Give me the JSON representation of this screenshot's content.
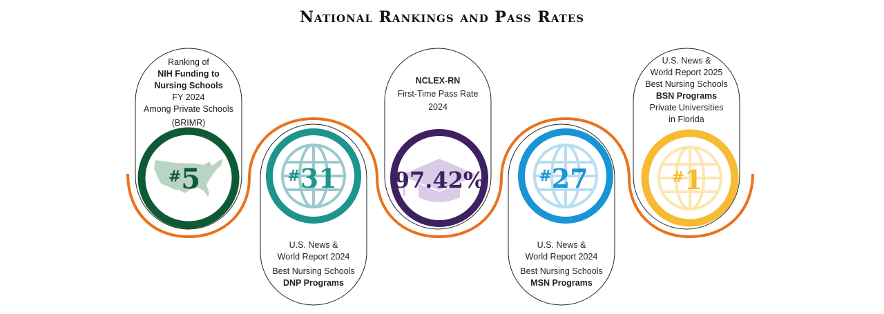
{
  "title": "National Rankings and Pass Rates",
  "colors": {
    "orange": "#E8731E",
    "green": "#0F5A36",
    "teal": "#1E948D",
    "purple": "#3E2160",
    "blue": "#1994D4",
    "gold": "#F6BB33"
  },
  "badges": [
    {
      "rank_prefix": "#",
      "rank_value": "5",
      "icon": "us-map-icon",
      "lines": [
        "Ranking of",
        "NIH Funding to",
        "Nursing Schools",
        "FY 2024",
        "Among Private Schools",
        "(BRIMR)"
      ]
    },
    {
      "rank_prefix": "#",
      "rank_value": "31",
      "icon": "globe-icon",
      "lines": [
        "U.S. News &",
        "World Report 2024",
        "Best Nursing Schools",
        "DNP Programs"
      ]
    },
    {
      "rank_prefix": "",
      "rank_value": "97.42%",
      "icon": "graduation-cap-icon",
      "lines": [
        "NCLEX-RN",
        "First-Time Pass Rate",
        "2024"
      ]
    },
    {
      "rank_prefix": "#",
      "rank_value": "27",
      "icon": "globe-icon",
      "lines": [
        "U.S. News &",
        "World Report 2024",
        "Best Nursing Schools",
        "MSN Programs"
      ]
    },
    {
      "rank_prefix": "#",
      "rank_value": "1",
      "icon": "globe-icon",
      "lines": [
        "U.S. News &",
        "World Report 2025",
        "Best Nursing Schools",
        "BSN Programs",
        "Private Universities",
        "in Florida"
      ]
    }
  ]
}
